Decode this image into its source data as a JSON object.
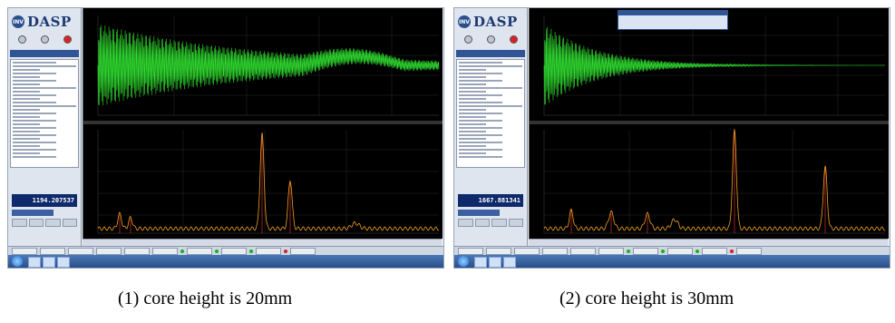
{
  "panels": [
    {
      "id": "shot1",
      "logo_text": "DASP",
      "logo_mark": "INV",
      "main_value": "1194.207537",
      "caption": "(1) core height is 20mm",
      "mode_options": [
        "",
        "",
        ""
      ],
      "colors": {
        "time_signal": "#2fdc2f",
        "spectrum": "#f0a020",
        "marker": "#e03030",
        "plot_bg": "#000000",
        "value_box": "#0f2a6b"
      }
    },
    {
      "id": "shot2",
      "logo_text": "DASP",
      "logo_mark": "INV",
      "main_value": "1667.881341",
      "caption": "(2) core height is 30mm",
      "mode_options": [
        "",
        "",
        ""
      ],
      "colors": {
        "time_signal": "#2fdc2f",
        "spectrum": "#f0a020",
        "marker": "#e03030",
        "plot_bg": "#000000",
        "value_box": "#0f2a6b"
      }
    }
  ],
  "icons": [
    "logo-icon",
    "start-orb-icon",
    "explorer-icon",
    "app-icon"
  ]
}
